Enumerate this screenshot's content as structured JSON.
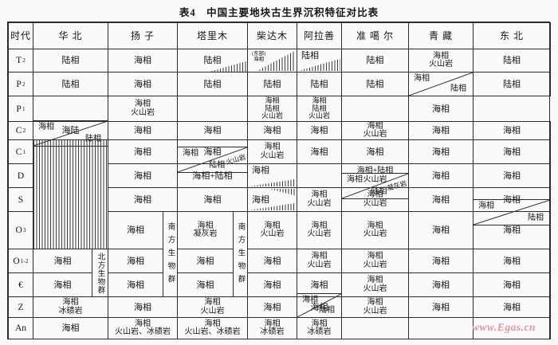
{
  "title": "表4　中国主要地块古生界沉积特征对比表",
  "watermark": "www.Egas.cn",
  "colors": {
    "border": "#2b2b2b",
    "text": "#141414",
    "page_bg": "#fafafa",
    "watermark": "#e8949f"
  },
  "table": {
    "era_header": "时代",
    "columns": [
      "华 北",
      "扬 子",
      "塔里木",
      "柴达木",
      "阿拉善",
      "准 噶 尔",
      "青 藏",
      "东 北"
    ],
    "eras": [
      {
        "m": "T",
        "s": "2"
      },
      {
        "m": "P",
        "s": "2"
      },
      {
        "m": "P",
        "s": "1"
      },
      {
        "m": "C",
        "s": "2"
      },
      {
        "m": "C",
        "s": "1"
      },
      {
        "m": "D"
      },
      {
        "m": "S"
      },
      {
        "m": "O",
        "s": "3"
      },
      {
        "m": "O",
        "s": "1-2"
      },
      {
        "m": "€"
      },
      {
        "m": "Z"
      },
      {
        "m": "An"
      }
    ],
    "rows": [
      {
        "cells": [
          {
            "v": "陆相"
          },
          {
            "v": "海相"
          },
          {
            "v": "陆相",
            "wedges": [
              "br-small"
            ]
          },
          {
            "v": "(东部)\n海相",
            "pos": "tl",
            "small": true,
            "wedges": [
              "right-full"
            ]
          },
          {
            "v": "陆相",
            "pos": "tl",
            "wedges": [
              "bottom"
            ]
          },
          {
            "v": "陆相"
          },
          {
            "v": "海相\n火山岩"
          },
          {
            "v": "陆相"
          }
        ]
      },
      {
        "cells": [
          {
            "v": "陆相"
          },
          {
            "v": "海相"
          },
          {
            "v": "陆相"
          },
          {
            "v": "陆相"
          },
          {
            "v": "陆相"
          },
          {
            "v": "陆相"
          },
          {
            "d": {
              "tl": "海相",
              "br": "陆相"
            }
          },
          {
            "v": "陆相"
          }
        ]
      },
      {
        "cells": [
          {
            "d": {
              "tl": "海相",
              "br": "陆相"
            }
          },
          {
            "v": "海相\n火山岩"
          },
          {
            "d": {
              "tl": "海相",
              "br": "陆相",
              "slant": "火山岩"
            }
          },
          {
            "v": "海相\n陆相\n火山岩"
          },
          {
            "v": "海相\n陆相\n火山岩"
          },
          {
            "d": {
              "tl": "海相",
              "br": "陆相",
              "slant": "凝灰岩"
            }
          },
          {
            "v": "海相"
          },
          {
            "d": {
              "tl": "海相",
              "br": "陆相"
            }
          }
        ]
      },
      {
        "cells": [
          {
            "v": "海陆"
          },
          {
            "v": "海相"
          },
          {
            "v": "海相"
          },
          {
            "v": "海相"
          },
          {
            "v": "海相"
          },
          {
            "v": "海相\n火山岩"
          },
          {
            "v": "海相"
          },
          {
            "v": "海相"
          }
        ]
      },
      {
        "cells": [
          {
            "hatch": true,
            "rowspan": 4
          },
          {
            "v": "海相"
          },
          {
            "v": "海相"
          },
          {
            "v": "海相\n火山岩"
          },
          {
            "v": "海相"
          },
          {
            "v": "海相"
          },
          {
            "v": "海相"
          },
          {
            "v": "海相"
          }
        ]
      },
      {
        "cells": [
          null,
          {
            "v": "海相"
          },
          {
            "v": "海相+陆相"
          },
          {
            "v": "海相",
            "pos": "tl",
            "wedges": [
              "bottom-low"
            ]
          },
          {
            "d": {
              "tl": "海相",
              "br": "陆相"
            }
          },
          {
            "v": "海相+陆相\n火山岩"
          },
          {
            "v": "海相"
          },
          {
            "v": "海相"
          }
        ]
      },
      {
        "cells": [
          null,
          {
            "v": "海相"
          },
          {
            "v": "海相"
          },
          {
            "v": "海相",
            "pos": "ml",
            "wedges": [
              "top-right",
              "bottom-low"
            ]
          },
          {
            "v": "海相\n火山岩"
          },
          {
            "v": "海相\n火山岩"
          },
          {
            "v": "海相"
          },
          {
            "v": "海相"
          }
        ]
      },
      {
        "cells": [
          null,
          {
            "v": "海相"
          },
          {
            "v": "海相\n凝灰岩"
          },
          {
            "v": "海相\n火山岩"
          },
          {
            "v": "海相\n火山岩"
          },
          {
            "v": "海相\n火山岩"
          },
          {
            "v": "海相"
          },
          {
            "v": "海相"
          }
        ]
      },
      {
        "cells": [
          {
            "v": "海相"
          },
          {
            "v": "海相"
          },
          {
            "v": "海相"
          },
          {
            "v": "海相"
          },
          {
            "v": "海相\n火山岩"
          },
          {
            "v": "海相\n火山岩"
          },
          {
            "v": "海相"
          },
          {
            "v": "海相"
          }
        ]
      },
      {
        "cells": [
          {
            "v": "海相"
          },
          {
            "v": "海相"
          },
          {
            "v": "海相"
          },
          {
            "v": "海相"
          },
          {
            "v": "海相"
          },
          {
            "v": "海相\n火山岩"
          },
          {
            "v": "海相"
          },
          {
            "v": "海相"
          }
        ]
      },
      {
        "cells": [
          {
            "v": "海相\n冰碛岩"
          },
          {
            "v": "海相"
          },
          {
            "v": "海相\n火山岩"
          },
          {
            "v": "海相"
          },
          {
            "v": "海相"
          },
          {
            "v": "海相\n火山岩"
          },
          {
            "v": "海相"
          },
          {
            "v": "海相"
          }
        ]
      },
      {
        "cells": [
          {
            "v": "海相"
          },
          {
            "v": "海相\n火山岩、冰碛岩"
          },
          {
            "v": "海相\n火山岩、冰碛岩"
          },
          {
            "v": "海相\n冰碛岩"
          },
          {
            "v": "海相\n冰碛岩"
          },
          {
            "v": ""
          },
          {
            "v": ""
          },
          {
            "v": ""
          }
        ]
      }
    ],
    "strips": [
      {
        "col": 0,
        "row_start": 8,
        "row_end": 10,
        "label": "北方生物群"
      },
      {
        "col": 1,
        "row_start": 7,
        "row_end": 10,
        "label": "南方生物群"
      },
      {
        "col": 2,
        "row_start": 7,
        "row_end": 10,
        "label": "南方生物群"
      }
    ]
  }
}
